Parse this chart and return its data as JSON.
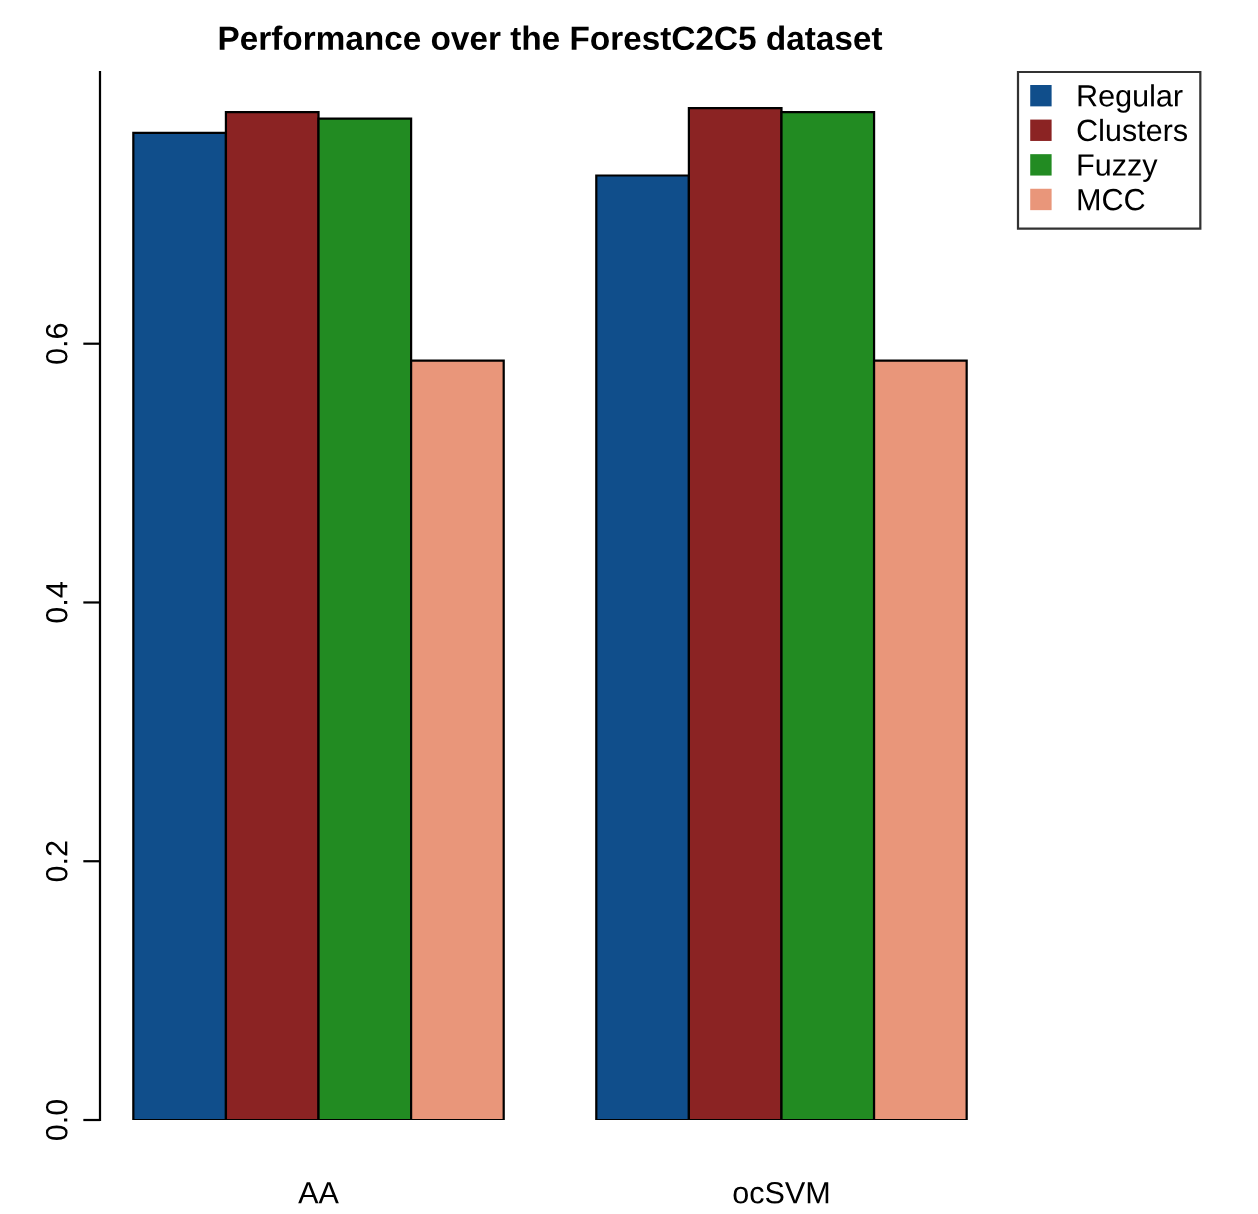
{
  "chart_data": {
    "type": "bar",
    "title": "Performance over the ForestC2C5 dataset",
    "categories": [
      "AA",
      "ocSVM"
    ],
    "series": [
      {
        "name": "Regular",
        "color": "#104e8b",
        "values": [
          0.763,
          0.73
        ]
      },
      {
        "name": "Clusters",
        "color": "#8b2323",
        "values": [
          0.779,
          0.782
        ]
      },
      {
        "name": "Fuzzy",
        "color": "#228b22",
        "values": [
          0.774,
          0.779
        ]
      },
      {
        "name": "MCC",
        "color": "#e9967a",
        "values": [
          0.587,
          0.587
        ]
      }
    ],
    "ylim": [
      0,
      0.81
    ],
    "yticks": [
      {
        "value": 0,
        "label": "0.0"
      },
      0.2,
      0.4,
      0.6
    ],
    "grid": false,
    "legend": "top right"
  }
}
